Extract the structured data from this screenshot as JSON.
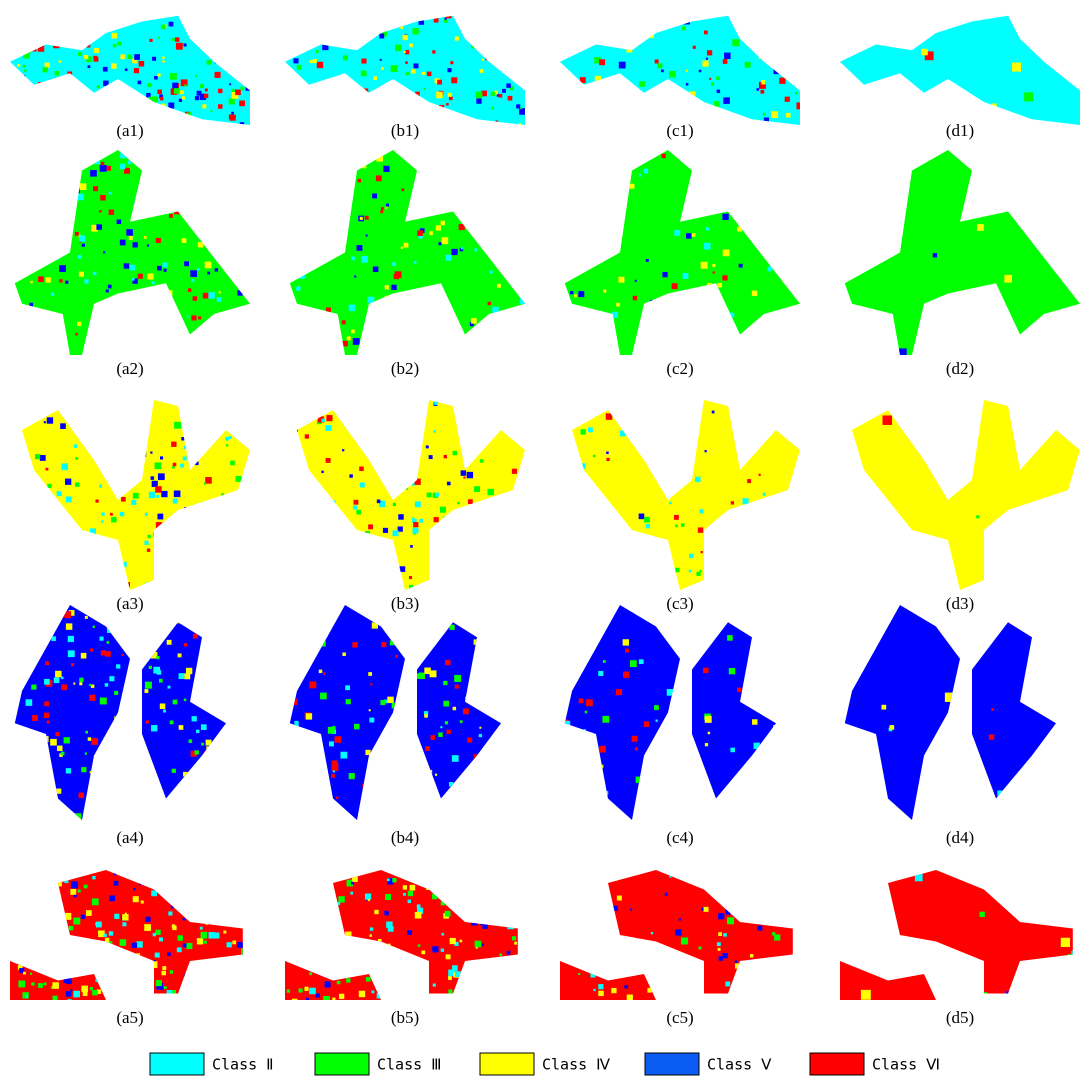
{
  "panels": [
    [
      "(a1)",
      "(b1)",
      "(c1)",
      "(d1)"
    ],
    [
      "(a2)",
      "(b2)",
      "(c2)",
      "(d2)"
    ],
    [
      "(a3)",
      "(b3)",
      "(c3)",
      "(d3)"
    ],
    [
      "(a4)",
      "(b4)",
      "(c4)",
      "(d4)"
    ],
    [
      "(a5)",
      "(b5)",
      "(c5)",
      "(d5)"
    ]
  ],
  "legend": [
    {
      "label": "Class Ⅱ",
      "color": "#00ffff"
    },
    {
      "label": "Class Ⅲ",
      "color": "#00ff00"
    },
    {
      "label": "Class Ⅳ",
      "color": "#ffff00"
    },
    {
      "label": "Class Ⅴ",
      "color": "#0b5cf2"
    },
    {
      "label": "Class Ⅵ",
      "color": "#ff0000"
    }
  ]
}
